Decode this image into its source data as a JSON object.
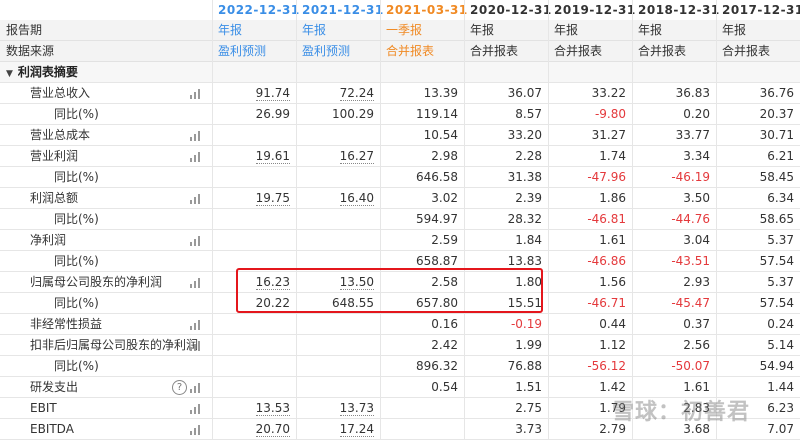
{
  "header": {
    "report_period_label": "报告期",
    "data_source_label": "数据来源",
    "columns": [
      {
        "date": "2022-12-31",
        "type": "年报",
        "source": "盈利预测",
        "tone": "blue"
      },
      {
        "date": "2021-12-31",
        "type": "年报",
        "source": "盈利预测",
        "tone": "blue"
      },
      {
        "date": "2021-03-31",
        "type": "一季报",
        "source": "合并报表",
        "tone": "orange"
      },
      {
        "date": "2020-12-31",
        "type": "年报",
        "source": "合并报表",
        "tone": "dark"
      },
      {
        "date": "2019-12-31",
        "type": "年报",
        "source": "合并报表",
        "tone": "dark"
      },
      {
        "date": "2018-12-31",
        "type": "年报",
        "source": "合并报表",
        "tone": "dark"
      },
      {
        "date": "2017-12-31",
        "type": "年报",
        "source": "合并报表",
        "tone": "dark"
      }
    ]
  },
  "section_title": "利润表摘要",
  "rows": [
    {
      "label": "营业总收入",
      "level": 1,
      "icon": "bar-chart-icon",
      "values": [
        "91.74",
        "72.24",
        "13.39",
        "36.07",
        "33.22",
        "36.83",
        "36.76"
      ]
    },
    {
      "label": "同比(%)",
      "level": 2,
      "values": [
        "26.99",
        "100.29",
        "119.14",
        "8.57",
        "-9.80",
        "0.20",
        "20.37"
      ]
    },
    {
      "label": "营业总成本",
      "level": 1,
      "icon": "bar-chart-icon",
      "values": [
        "",
        "",
        "10.54",
        "33.20",
        "31.27",
        "33.77",
        "30.71"
      ]
    },
    {
      "label": "营业利润",
      "level": 1,
      "icon": "bar-chart-icon",
      "values": [
        "19.61",
        "16.27",
        "2.98",
        "2.28",
        "1.74",
        "3.34",
        "6.21"
      ]
    },
    {
      "label": "同比(%)",
      "level": 2,
      "values": [
        "",
        "",
        "646.58",
        "31.38",
        "-47.96",
        "-46.19",
        "58.45"
      ]
    },
    {
      "label": "利润总额",
      "level": 1,
      "icon": "bar-chart-icon",
      "values": [
        "19.75",
        "16.40",
        "3.02",
        "2.39",
        "1.86",
        "3.50",
        "6.34"
      ]
    },
    {
      "label": "同比(%)",
      "level": 2,
      "values": [
        "",
        "",
        "594.97",
        "28.32",
        "-46.81",
        "-44.76",
        "58.65"
      ]
    },
    {
      "label": "净利润",
      "level": 1,
      "icon": "bar-chart-icon",
      "values": [
        "",
        "",
        "2.59",
        "1.84",
        "1.61",
        "3.04",
        "5.37"
      ]
    },
    {
      "label": "同比(%)",
      "level": 2,
      "values": [
        "",
        "",
        "658.87",
        "13.83",
        "-46.86",
        "-43.51",
        "57.54"
      ]
    },
    {
      "label": "归属母公司股东的净利润",
      "level": 1,
      "icon": "bar-chart-icon",
      "values": [
        "16.23",
        "13.50",
        "2.58",
        "1.80",
        "1.56",
        "2.93",
        "5.37"
      ]
    },
    {
      "label": "同比(%)",
      "level": 2,
      "values": [
        "20.22",
        "648.55",
        "657.80",
        "15.51",
        "-46.71",
        "-45.47",
        "57.54"
      ]
    },
    {
      "label": "非经常性损益",
      "level": 1,
      "icon": "bar-chart-icon",
      "values": [
        "",
        "",
        "0.16",
        "-0.19",
        "0.44",
        "0.37",
        "0.24"
      ]
    },
    {
      "label": "扣非后归属母公司股东的净利润",
      "level": 1,
      "icon": "bar-chart-icon",
      "values": [
        "",
        "",
        "2.42",
        "1.99",
        "1.12",
        "2.56",
        "5.14"
      ]
    },
    {
      "label": "同比(%)",
      "level": 2,
      "values": [
        "",
        "",
        "896.32",
        "76.88",
        "-56.12",
        "-50.07",
        "54.94"
      ]
    },
    {
      "label": "研发支出",
      "level": 1,
      "icon": "bar-chart-icon",
      "help": "?",
      "values": [
        "",
        "",
        "0.54",
        "1.51",
        "1.42",
        "1.61",
        "1.44"
      ]
    },
    {
      "label": "EBIT",
      "level": 1,
      "icon": "bar-chart-icon",
      "values": [
        "13.53",
        "13.73",
        "",
        "2.75",
        "1.79",
        "2.83",
        "6.23"
      ]
    },
    {
      "label": "EBITDA",
      "level": 1,
      "icon": "bar-chart-icon",
      "values": [
        "20.70",
        "17.24",
        "",
        "3.73",
        "2.79",
        "3.68",
        "7.07"
      ]
    }
  ],
  "colors": {
    "forecast_blue": "#3a8ee6",
    "quarter_orange": "#f08a24",
    "negative_red": "#e4393c",
    "highlight_red": "#e4161c"
  },
  "watermark": "雪球：初善君"
}
